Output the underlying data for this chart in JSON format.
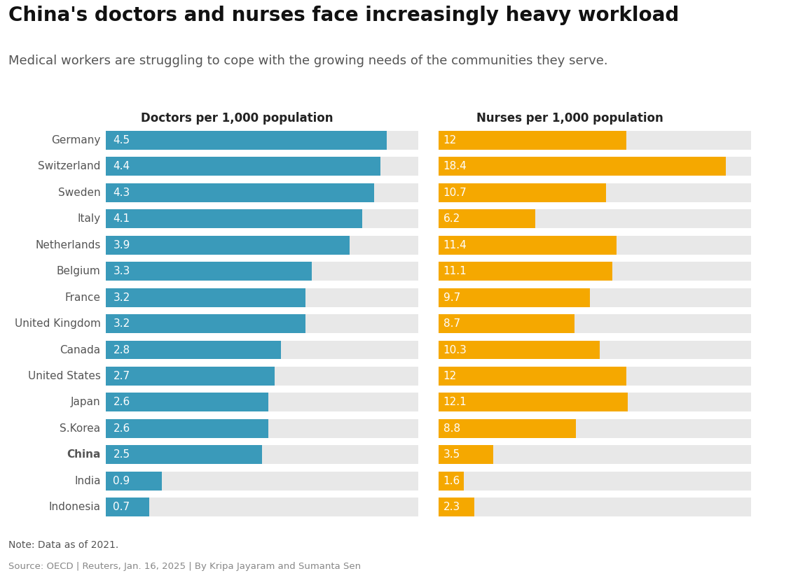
{
  "title": "China's doctors and nurses face increasingly heavy workload",
  "subtitle": "Medical workers are struggling to cope with the growing needs of the communities they serve.",
  "note": "Note: Data as of 2021.",
  "source": "Source: OECD | Reuters, Jan. 16, 2025 | By Kripa Jayaram and Sumanta Sen",
  "doctors_label": "Doctors per 1,000 population",
  "nurses_label": "Nurses per 1,000 population",
  "countries": [
    "Germany",
    "Switzerland",
    "Sweden",
    "Italy",
    "Netherlands",
    "Belgium",
    "France",
    "United Kingdom",
    "Canada",
    "United States",
    "Japan",
    "S.Korea",
    "China",
    "India",
    "Indonesia"
  ],
  "china_index": 12,
  "doctors": [
    4.5,
    4.4,
    4.3,
    4.1,
    3.9,
    3.3,
    3.2,
    3.2,
    2.8,
    2.7,
    2.6,
    2.6,
    2.5,
    0.9,
    0.7
  ],
  "nurses": [
    12.0,
    18.4,
    10.7,
    6.2,
    11.4,
    11.1,
    9.7,
    8.7,
    10.3,
    12.0,
    12.1,
    8.8,
    3.5,
    1.6,
    2.3
  ],
  "nurses_labels": [
    "12",
    "18.4",
    "10.7",
    "6.2",
    "11.4",
    "11.1",
    "9.7",
    "8.7",
    "10.3",
    "12",
    "12.1",
    "8.8",
    "3.5",
    "1.6",
    "2.3"
  ],
  "doctors_labels": [
    "4.5",
    "4.4",
    "4.3",
    "4.1",
    "3.9",
    "3.3",
    "3.2",
    "3.2",
    "2.8",
    "2.7",
    "2.6",
    "2.6",
    "2.5",
    "0.9",
    "0.7"
  ],
  "doctor_color": "#3a9aba",
  "nurse_color": "#f5a800",
  "row_bg_color": "#e8e8e8",
  "row_white_gap": "#ffffff",
  "bar_label_color": "#ffffff",
  "country_label_color": "#555555",
  "title_fontsize": 20,
  "subtitle_fontsize": 13,
  "col_header_fontsize": 12,
  "bar_label_fontsize": 11,
  "country_fontsize": 11,
  "note_fontsize": 10,
  "source_fontsize": 9.5,
  "doctors_max": 5.0,
  "nurses_max": 20.0
}
